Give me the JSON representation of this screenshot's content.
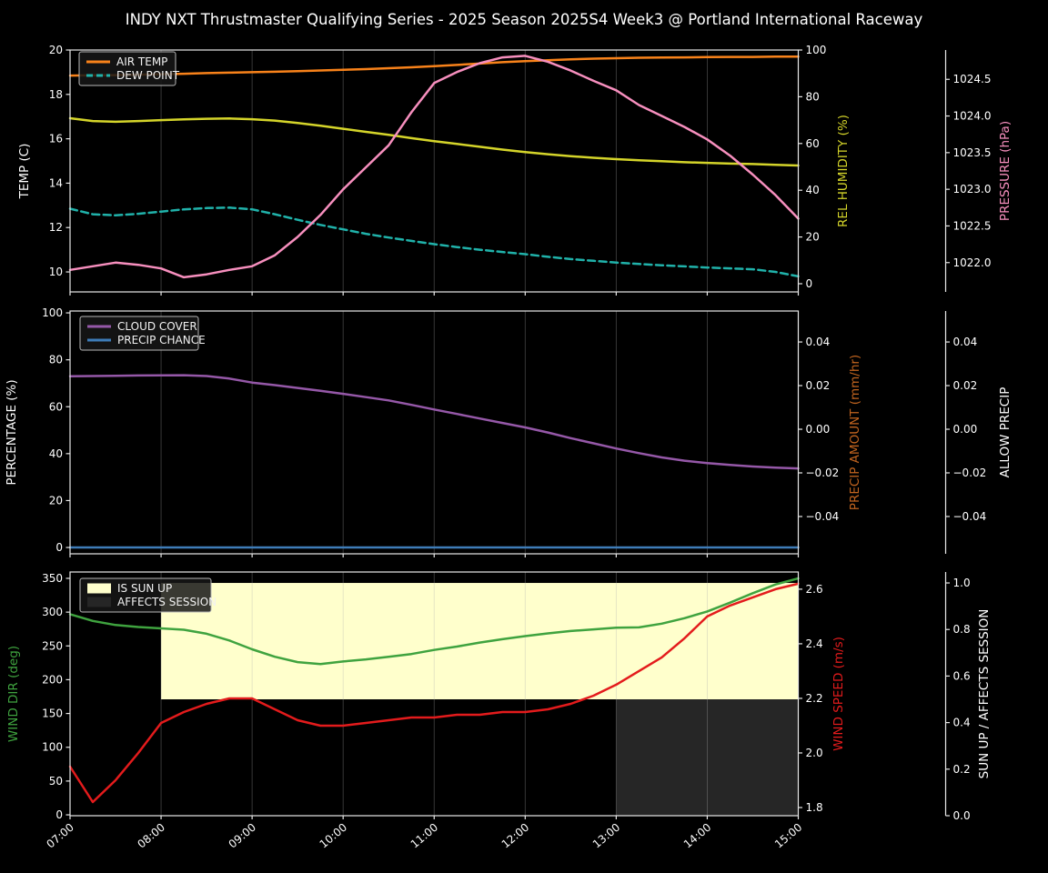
{
  "title": "INDY NXT Thrustmaster Qualifying Series - 2025 Season 2025S4 Week3 @ Portland International Raceway",
  "background": "#000000",
  "text_color": "#ffffff",
  "grid_color": "rgba(176,176,176,0.35)",
  "spine_color": "#e8e8e8",
  "x_axis": {
    "tick_labels": [
      "07:00",
      "08:00",
      "09:00",
      "10:00",
      "11:00",
      "12:00",
      "13:00",
      "14:00",
      "15:00"
    ]
  },
  "times": [
    "07:00",
    "07:15",
    "07:30",
    "07:45",
    "08:00",
    "08:15",
    "08:30",
    "08:45",
    "09:00",
    "09:15",
    "09:30",
    "09:45",
    "10:00",
    "10:15",
    "10:30",
    "10:45",
    "11:00",
    "11:15",
    "11:30",
    "11:45",
    "12:00",
    "12:15",
    "12:30",
    "12:45",
    "13:00",
    "13:15",
    "13:30",
    "13:45",
    "14:00",
    "14:15",
    "14:30",
    "14:45",
    "15:00"
  ],
  "chart_data": [
    {
      "name": "temperature-panel",
      "type": "line",
      "show_x_tick_labels": false,
      "axes": {
        "left": {
          "label": "TEMP (C)",
          "label_color": "#ffffff",
          "decimals": 0,
          "ticks": [
            10,
            12,
            14,
            16,
            18,
            20
          ],
          "ylim": [
            9.1,
            20.0
          ]
        },
        "right": {
          "label": "REL HUMIDITY (%)",
          "label_color": "#d4d42a",
          "decimals": 0,
          "ticks": [
            0,
            20,
            40,
            60,
            80,
            100
          ],
          "ylim": [
            -3.5,
            100.0
          ]
        },
        "far_right": {
          "label": "PRESSURE (hPa)",
          "label_color": "#f78fbe",
          "decimals": 1,
          "ticks": [
            1022.0,
            1022.5,
            1023.0,
            1023.5,
            1024.0,
            1024.5
          ],
          "ylim": [
            1021.6,
            1024.9
          ]
        }
      },
      "series": [
        {
          "name": "AIR TEMP",
          "axis": "left",
          "color": "#f8821a",
          "style": "solid",
          "values": [
            18.85,
            18.86,
            18.87,
            18.89,
            18.91,
            18.93,
            18.96,
            18.98,
            19.0,
            19.02,
            19.05,
            19.08,
            19.11,
            19.14,
            19.18,
            19.22,
            19.27,
            19.33,
            19.39,
            19.45,
            19.5,
            19.54,
            19.58,
            19.61,
            19.63,
            19.65,
            19.66,
            19.67,
            19.68,
            19.69,
            19.69,
            19.7,
            19.7
          ]
        },
        {
          "name": "DEW POINT",
          "axis": "left",
          "color": "#20b2aa",
          "style": "dashed",
          "values": [
            12.85,
            12.6,
            12.55,
            12.62,
            12.72,
            12.82,
            12.88,
            12.9,
            12.82,
            12.6,
            12.35,
            12.12,
            11.92,
            11.72,
            11.55,
            11.4,
            11.25,
            11.12,
            11.0,
            10.9,
            10.8,
            10.68,
            10.58,
            10.5,
            10.42,
            10.36,
            10.3,
            10.25,
            10.2,
            10.16,
            10.12,
            10.0,
            9.8
          ]
        },
        {
          "name": "REL HUMIDITY",
          "axis": "right",
          "color": "#d4d42a",
          "style": "solid",
          "values": [
            70.8,
            69.6,
            69.3,
            69.6,
            70.0,
            70.3,
            70.6,
            70.7,
            70.4,
            69.8,
            68.8,
            67.6,
            66.3,
            65.0,
            63.7,
            62.3,
            61.0,
            59.8,
            58.6,
            57.4,
            56.3,
            55.4,
            54.6,
            53.9,
            53.3,
            52.8,
            52.4,
            52.0,
            51.7,
            51.4,
            51.2,
            50.9,
            50.6
          ]
        },
        {
          "name": "PRESSURE",
          "axis": "far_right",
          "color": "#f78fbe",
          "style": "solid",
          "values": [
            1021.9,
            1021.95,
            1022.0,
            1021.97,
            1021.92,
            1021.8,
            1021.84,
            1021.9,
            1021.95,
            1022.1,
            1022.35,
            1022.65,
            1023.0,
            1023.3,
            1023.6,
            1024.05,
            1024.45,
            1024.6,
            1024.72,
            1024.8,
            1024.82,
            1024.74,
            1024.62,
            1024.48,
            1024.35,
            1024.15,
            1024.0,
            1023.85,
            1023.68,
            1023.46,
            1023.2,
            1022.92,
            1022.6
          ]
        }
      ],
      "legend": [
        {
          "label": "AIR TEMP",
          "color": "#f8821a",
          "swatch": "line"
        },
        {
          "label": "DEW POINT",
          "color": "#20b2aa",
          "swatch": "dashed-line"
        }
      ]
    },
    {
      "name": "precipitation-panel",
      "type": "line",
      "show_x_tick_labels": false,
      "axes": {
        "left": {
          "label": "PERCENTAGE (%)",
          "label_color": "#ffffff",
          "decimals": 0,
          "ticks": [
            0,
            20,
            40,
            60,
            80,
            100
          ],
          "ylim": [
            -2.7,
            100.8
          ]
        },
        "right": {
          "label": "PRECIP AMOUNT (mm/hr)",
          "label_color": "#c1641f",
          "decimals": 2,
          "ticks": [
            0.04,
            0.02,
            0.0,
            -0.02,
            -0.04
          ],
          "ylim": [
            -0.0571,
            0.0542
          ]
        },
        "far_right": {
          "label": "ALLOW PRECIP",
          "label_color": "#ffffff",
          "decimals": 2,
          "ticks": [
            0.04,
            0.02,
            0.0,
            -0.02,
            -0.04
          ],
          "ylim": [
            -0.0571,
            0.0542
          ]
        }
      },
      "series": [
        {
          "name": "CLOUD COVER",
          "axis": "left",
          "color": "#9558a8",
          "style": "solid",
          "values": [
            73.0,
            73.1,
            73.2,
            73.3,
            73.4,
            73.45,
            73.1,
            72.0,
            70.3,
            69.2,
            68.0,
            66.8,
            65.5,
            64.1,
            62.7,
            60.8,
            58.8,
            56.9,
            55.0,
            53.1,
            51.2,
            49.0,
            46.6,
            44.4,
            42.2,
            40.2,
            38.4,
            37.0,
            36.0,
            35.2,
            34.5,
            34.0,
            33.7
          ]
        },
        {
          "name": "PRECIP CHANCE",
          "axis": "left",
          "color": "#3e7cb8",
          "style": "solid",
          "values": [
            0,
            0,
            0,
            0,
            0,
            0,
            0,
            0,
            0,
            0,
            0,
            0,
            0,
            0,
            0,
            0,
            0,
            0,
            0,
            0,
            0,
            0,
            0,
            0,
            0,
            0,
            0,
            0,
            0,
            0,
            0,
            0,
            0
          ]
        }
      ],
      "legend": [
        {
          "label": "CLOUD COVER",
          "color": "#9558a8",
          "swatch": "line"
        },
        {
          "label": "PRECIP CHANCE",
          "color": "#3e7cb8",
          "swatch": "line"
        }
      ]
    },
    {
      "name": "wind-panel",
      "type": "line",
      "show_x_tick_labels": true,
      "axes": {
        "left": {
          "label": "WIND DIR (deg)",
          "label_color": "#3fa33f",
          "decimals": 0,
          "ticks": [
            0,
            50,
            100,
            150,
            200,
            250,
            300,
            350
          ],
          "ylim": [
            -1.3,
            359.4
          ]
        },
        "right": {
          "label": "WIND SPEED (m/s)",
          "label_color": "#e31b1c",
          "decimals": 1,
          "ticks": [
            1.8,
            2.0,
            2.2,
            2.4,
            2.6
          ],
          "ylim": [
            1.77,
            2.663
          ]
        },
        "far_right": {
          "label": "SUN UP / AFFECTS SESSION",
          "label_color": "#ffffff",
          "decimals": 1,
          "ticks": [
            0.0,
            0.2,
            0.4,
            0.6,
            0.8,
            1.0
          ],
          "ylim": [
            0.0,
            1.047
          ]
        }
      },
      "fills": [
        {
          "name": "IS SUN UP",
          "axis": "far_right",
          "x_from": "08:00",
          "x_to": "15:00",
          "y_from": 0.5,
          "y_to": 1.0,
          "color": "#ffffcc"
        },
        {
          "name": "AFFECTS SESSION",
          "axis": "far_right",
          "x_from": "13:00",
          "x_to": "15:00",
          "y_from": 0.0,
          "y_to": 0.5,
          "color": "#262626"
        }
      ],
      "series": [
        {
          "name": "WIND DIR",
          "axis": "left",
          "color": "#3fa33f",
          "style": "solid",
          "values": [
            297,
            287,
            281,
            278,
            276,
            274,
            268,
            258,
            245,
            234,
            226,
            223,
            227,
            230,
            234,
            238,
            244,
            249,
            255,
            260,
            264.5,
            268.5,
            272,
            274.5,
            277,
            277.5,
            283,
            291,
            301,
            314,
            328,
            341,
            350
          ]
        },
        {
          "name": "WIND SPEED",
          "axis": "right",
          "color": "#e31b1c",
          "style": "solid",
          "values": [
            1.95,
            1.82,
            1.9,
            2.0,
            2.11,
            2.15,
            2.18,
            2.2,
            2.2,
            2.16,
            2.12,
            2.1,
            2.1,
            2.11,
            2.12,
            2.13,
            2.13,
            2.14,
            2.14,
            2.15,
            2.15,
            2.16,
            2.18,
            2.21,
            2.25,
            2.3,
            2.35,
            2.42,
            2.5,
            2.54,
            2.57,
            2.6,
            2.62
          ]
        }
      ],
      "legend": [
        {
          "label": "IS SUN UP",
          "color": "#ffffcc",
          "swatch": "patch"
        },
        {
          "label": "AFFECTS SESSION",
          "color": "#262626",
          "swatch": "patch"
        }
      ]
    }
  ]
}
